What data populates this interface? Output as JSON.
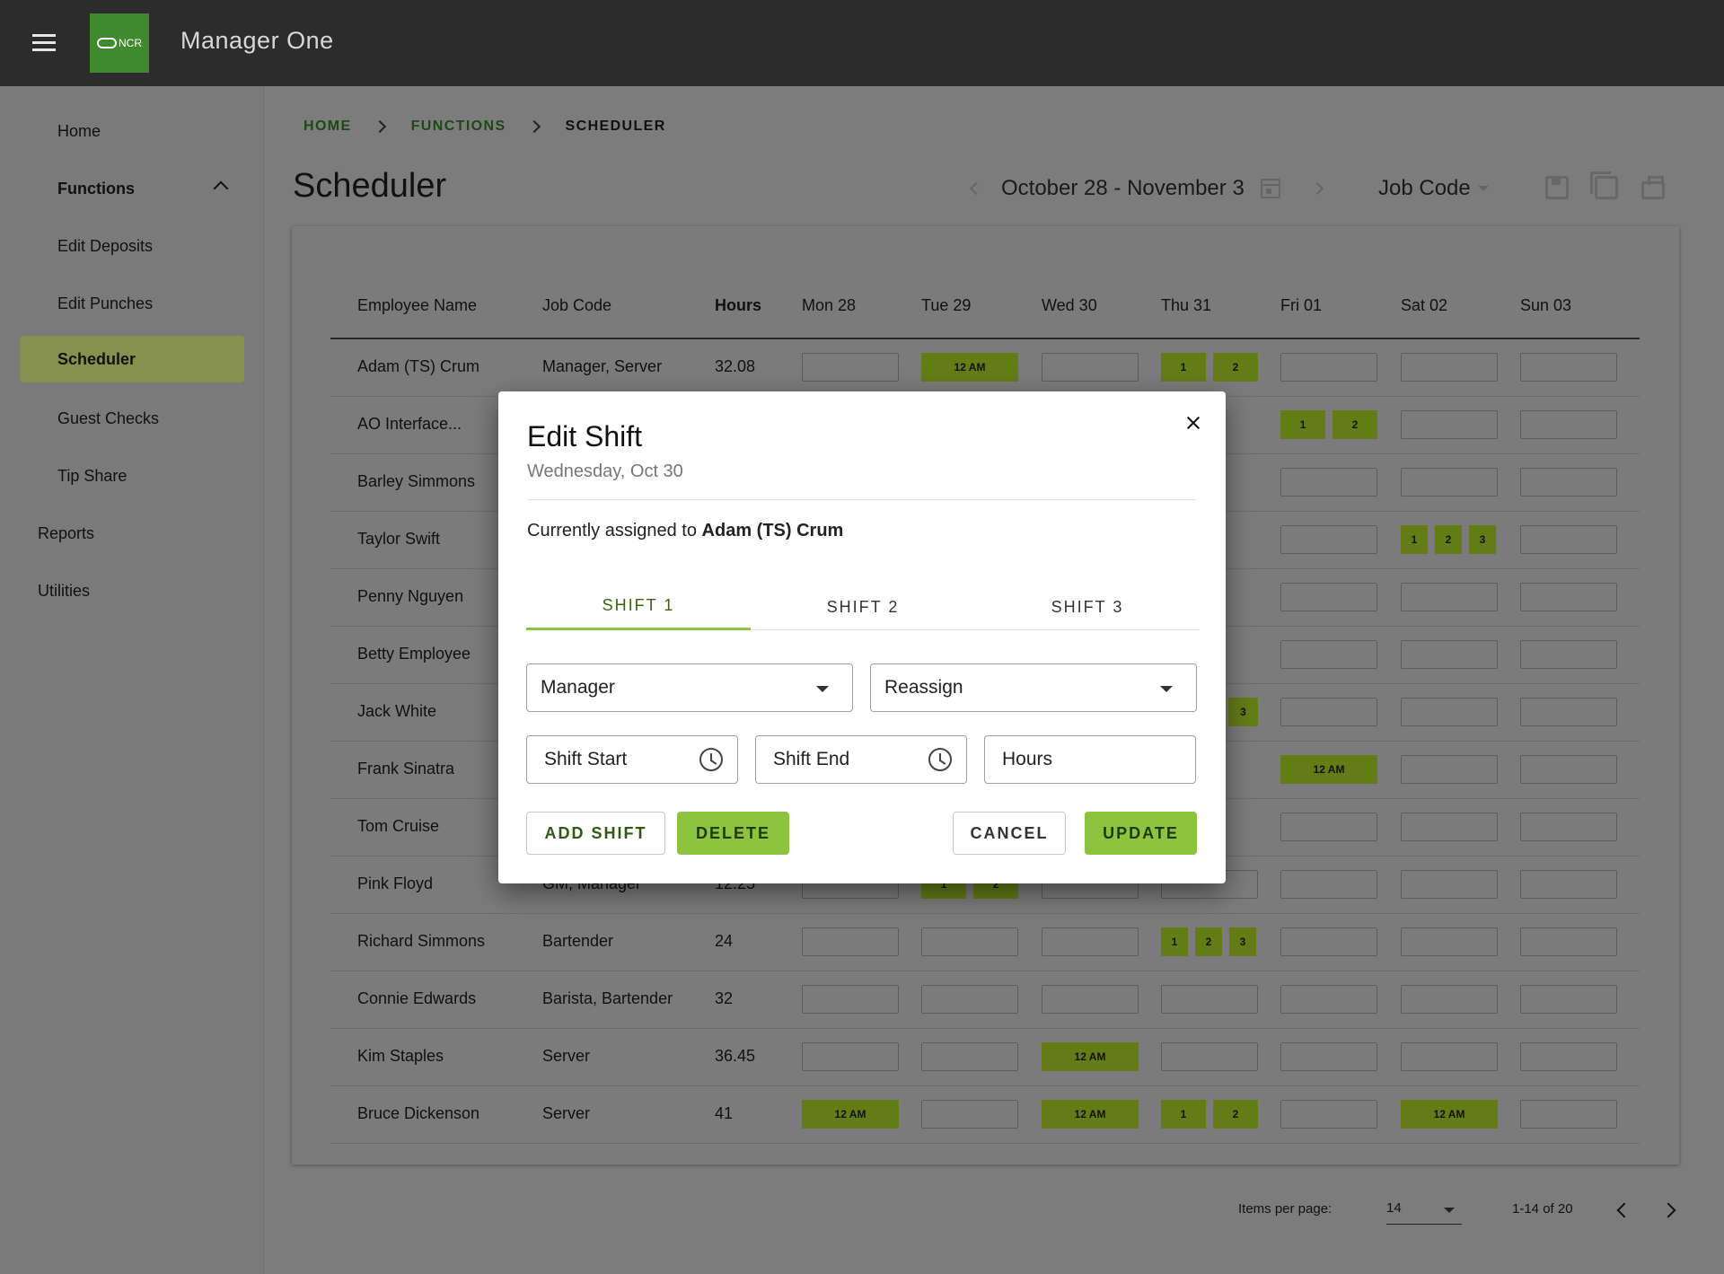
{
  "app": {
    "title": "Manager One",
    "logo_text": "NCR"
  },
  "sidebar": {
    "items": [
      {
        "label": "Home"
      },
      {
        "label": "Functions"
      },
      {
        "label": "Edit Deposits"
      },
      {
        "label": "Edit Punches"
      },
      {
        "label": "Scheduler"
      },
      {
        "label": "Guest Checks"
      },
      {
        "label": "Tip Share"
      },
      {
        "label": "Reports"
      },
      {
        "label": "Utilities"
      }
    ]
  },
  "breadcrumb": {
    "home": "HOME",
    "functions": "FUNCTIONS",
    "current": "SCHEDULER"
  },
  "page": {
    "title": "Scheduler",
    "date_range": "October 28 - November 3",
    "job_code_select": "Job Code"
  },
  "table": {
    "headers": [
      "Employee Name",
      "Job Code",
      "Hours",
      "Mon 28",
      "Tue 29",
      "Wed 30",
      "Thu 31",
      "Fri 01",
      "Sat 02",
      "Sun 03"
    ],
    "rows": [
      {
        "name": "Adam (TS) Crum",
        "job": "Manager, Server",
        "hours": "32.08"
      },
      {
        "name": "AO Interface...",
        "job": "",
        "hours": ""
      },
      {
        "name": "Barley Simmons",
        "job": "",
        "hours": ""
      },
      {
        "name": "Taylor Swift",
        "job": "",
        "hours": ""
      },
      {
        "name": "Penny Nguyen",
        "job": "",
        "hours": ""
      },
      {
        "name": "Betty Employee",
        "job": "",
        "hours": ""
      },
      {
        "name": "Jack White",
        "job": "",
        "hours": ""
      },
      {
        "name": "Frank Sinatra",
        "job": "",
        "hours": ""
      },
      {
        "name": "Tom Cruise",
        "job": "",
        "hours": ""
      },
      {
        "name": "Pink Floyd",
        "job": "GM, Manager",
        "hours": "12.25"
      },
      {
        "name": "Richard Simmons",
        "job": "Bartender",
        "hours": "24"
      },
      {
        "name": "Connie Edwards",
        "job": "Barista, Bartender",
        "hours": "32"
      },
      {
        "name": "Kim Staples",
        "job": "Server",
        "hours": "36.45"
      },
      {
        "name": "Bruce Dickenson",
        "job": "Server",
        "hours": "41"
      }
    ]
  },
  "shifts": {
    "r0": {
      "tue": "12 AM",
      "thu1": "1",
      "thu2": "2"
    },
    "r1": {
      "fri1": "1",
      "fri2": "2"
    },
    "r3": {
      "sat1": "1",
      "sat2": "2",
      "sat3": "3"
    },
    "r6": {
      "thu3": "3"
    },
    "r7": {
      "fri": "12 AM"
    },
    "r9": {
      "tue1": "1",
      "tue2": "2"
    },
    "r10": {
      "thu1": "1",
      "thu2": "2",
      "thu3": "3"
    },
    "r12": {
      "wed": "12 AM"
    },
    "r13": {
      "mon": "12 AM",
      "wed": "12 AM",
      "thu1": "1",
      "thu2": "2",
      "sat": "12 AM"
    }
  },
  "pagination": {
    "label": "Items per page:",
    "per_page": "14",
    "range": "1-14 of 20"
  },
  "modal": {
    "title": "Edit Shift",
    "subtitle": "Wednesday, Oct 30",
    "assigned_prefix": "Currently assigned to",
    "assigned_name": "Adam (TS) Crum",
    "tabs": [
      "SHIFT 1",
      "SHIFT 2",
      "SHIFT 3"
    ],
    "job_select": "Manager",
    "reassign_select": "Reassign",
    "shift_start_placeholder": "Shift Start",
    "shift_end_placeholder": "Shift End",
    "hours_placeholder": "Hours",
    "add_shift": "ADD SHIFT",
    "delete": "DELETE",
    "cancel": "CANCEL",
    "update": "UPDATE"
  },
  "colors": {
    "accent_green": "#8cc33f",
    "dark_green": "#3f8a2c",
    "topbar": "#2c2c2c"
  }
}
